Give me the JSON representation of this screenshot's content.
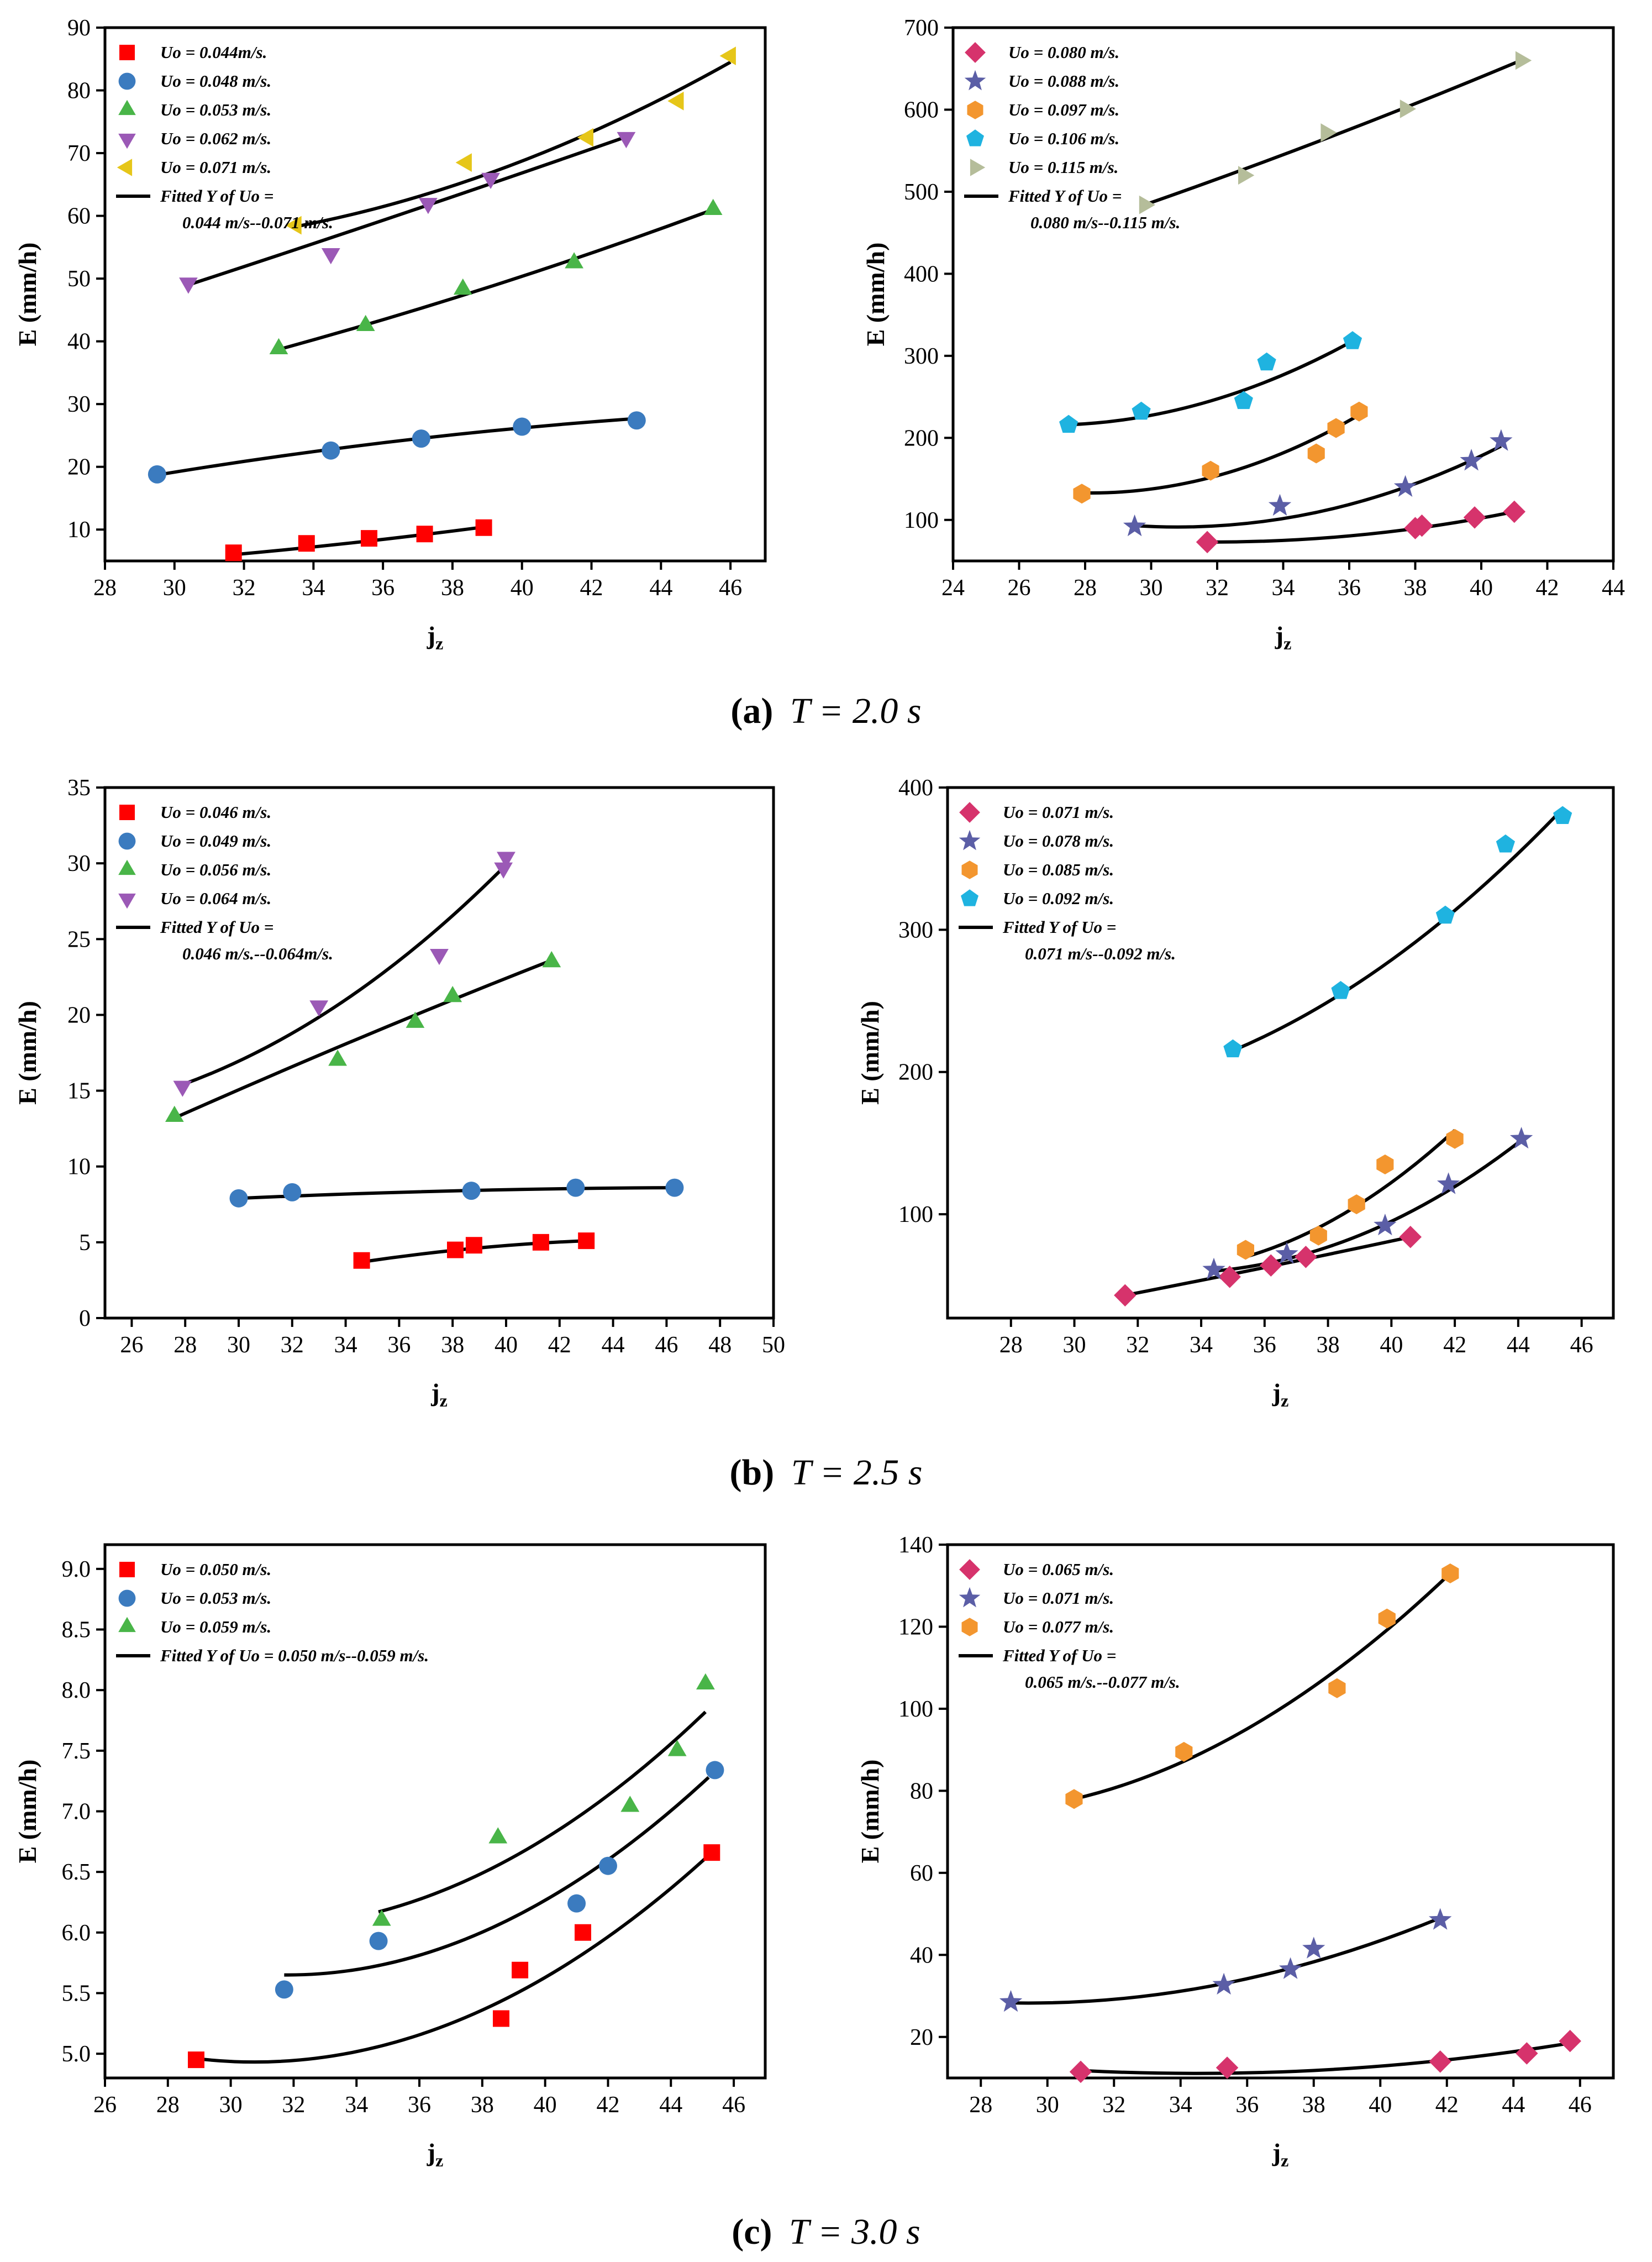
{
  "captions": [
    {
      "label": "(a)",
      "text": "T = 2.0 s"
    },
    {
      "label": "(b)",
      "text": "T = 2.5 s"
    },
    {
      "label": "(c)",
      "text": "T = 3.0 s"
    }
  ],
  "chart_data": [
    {
      "type": "scatter",
      "panel": "a-left",
      "xlabel": "jz",
      "ylabel": "E (mm/h)",
      "xlim": [
        28,
        47
      ],
      "ylim": [
        5,
        90
      ],
      "xticks": [
        28,
        30,
        32,
        34,
        36,
        38,
        40,
        42,
        44,
        46
      ],
      "yticks": [
        10,
        20,
        30,
        40,
        50,
        60,
        70,
        80,
        90
      ],
      "legend_position": "top-left",
      "fit_label": [
        "Fitted Y of Uo =",
        "0.044 m/s--0.071 m/s."
      ],
      "series": [
        {
          "name": "Uo = 0.044m/s.",
          "marker": "square",
          "color": "#ff0000",
          "x": [
            31.7,
            33.8,
            35.6,
            37.2,
            38.9
          ],
          "y": [
            6.3,
            7.8,
            8.6,
            9.3,
            10.3
          ],
          "fit": [
            [
              31.7,
              6.0
            ],
            [
              35.3,
              8.0
            ],
            [
              38.9,
              10.4
            ]
          ]
        },
        {
          "name": "Uo = 0.048 m/s.",
          "marker": "circle",
          "color": "#3b7bbf",
          "x": [
            29.5,
            34.5,
            37.1,
            40.0,
            43.3
          ],
          "y": [
            18.8,
            22.6,
            24.5,
            26.4,
            27.4
          ],
          "fit": [
            [
              29.5,
              18.7
            ],
            [
              36.4,
              24.1
            ],
            [
              43.3,
              27.7
            ]
          ]
        },
        {
          "name": "Uo = 0.053 m/s.",
          "marker": "triangle-up",
          "color": "#49b548",
          "x": [
            33.0,
            35.5,
            38.3,
            41.5,
            45.5
          ],
          "y": [
            38.8,
            42.5,
            48.3,
            52.5,
            61.0
          ],
          "fit": [
            [
              33.0,
              38.7
            ],
            [
              39.3,
              49.1
            ],
            [
              45.5,
              61.0
            ]
          ]
        },
        {
          "name": "Uo = 0.062 m/s.",
          "marker": "triangle-down",
          "color": "#9b59b6",
          "x": [
            30.4,
            34.5,
            37.3,
            39.1,
            43.0
          ],
          "y": [
            49.3,
            54.0,
            62.0,
            66.0,
            72.5
          ],
          "fit": [
            [
              30.4,
              49.0
            ],
            [
              36.7,
              60.6
            ],
            [
              43.0,
              72.6
            ]
          ]
        },
        {
          "name": "Uo = 0.071 m/s.",
          "marker": "triangle-left",
          "color": "#e6c619",
          "x": [
            33.5,
            38.4,
            41.9,
            44.5,
            46.0
          ],
          "y": [
            58.5,
            68.5,
            72.5,
            78.3,
            85.5
          ],
          "fit": [
            [
              33.5,
              58.3
            ],
            [
              39.7,
              68.1
            ],
            [
              46.0,
              84.5
            ]
          ]
        }
      ]
    },
    {
      "type": "scatter",
      "panel": "a-right",
      "xlabel": "jz",
      "ylabel": "E (mm/h)",
      "xlim": [
        24,
        44
      ],
      "ylim": [
        50,
        700
      ],
      "xticks": [
        24,
        26,
        28,
        30,
        32,
        34,
        36,
        38,
        40,
        42,
        44
      ],
      "yticks": [
        100,
        200,
        300,
        400,
        500,
        600,
        700
      ],
      "legend_position": "top-left",
      "fit_label": [
        "Fitted Y of Uo =",
        "0.080 m/s--0.115 m/s."
      ],
      "series": [
        {
          "name": "Uo = 0.080 m/s.",
          "marker": "diamond",
          "color": "#d6336c",
          "x": [
            31.7,
            38.0,
            38.2,
            39.8,
            41.0
          ],
          "y": [
            73,
            90,
            93,
            103,
            110
          ],
          "fit": [
            [
              31.7,
              73
            ],
            [
              36.4,
              82
            ],
            [
              41.0,
              110
            ]
          ]
        },
        {
          "name": "Uo = 0.088 m/s.",
          "marker": "star",
          "color": "#5b5ea6",
          "x": [
            29.5,
            33.9,
            37.7,
            39.7,
            40.6
          ],
          "y": [
            92,
            117,
            140,
            172,
            196
          ],
          "fit": [
            [
              29.5,
              93
            ],
            [
              35.1,
              110
            ],
            [
              40.6,
              190
            ]
          ]
        },
        {
          "name": "Uo = 0.097 m/s.",
          "marker": "hexagon",
          "color": "#f3962f",
          "x": [
            27.9,
            31.8,
            35.0,
            35.6,
            36.3
          ],
          "y": [
            132,
            160,
            181,
            212,
            232
          ],
          "fit": [
            [
              27.9,
              133
            ],
            [
              32.1,
              155
            ],
            [
              36.3,
              228
            ]
          ]
        },
        {
          "name": "Uo = 0.106 m/s.",
          "marker": "pentagon",
          "color": "#1fb3e0",
          "x": [
            27.5,
            29.7,
            32.8,
            33.5,
            36.1
          ],
          "y": [
            216,
            232,
            245,
            292,
            318
          ],
          "fit": [
            [
              27.5,
              216
            ],
            [
              31.8,
              245
            ],
            [
              36.1,
              318
            ]
          ]
        },
        {
          "name": "Uo = 0.115 m/s.",
          "marker": "triangle-right",
          "color": "#b5bd9a",
          "x": [
            29.8,
            32.8,
            35.3,
            37.7,
            41.2
          ],
          "y": [
            484,
            520,
            572,
            601,
            660
          ],
          "fit": [
            [
              29.8,
              484
            ],
            [
              35.5,
              568
            ],
            [
              41.2,
              660
            ]
          ]
        }
      ]
    },
    {
      "type": "scatter",
      "panel": "b-left",
      "xlabel": "jz",
      "ylabel": "E (mm/h)",
      "xlim": [
        25,
        50
      ],
      "ylim": [
        0,
        35
      ],
      "xticks": [
        26,
        28,
        30,
        32,
        34,
        36,
        38,
        40,
        42,
        44,
        46,
        48,
        50
      ],
      "yticks": [
        0,
        5,
        10,
        15,
        20,
        25,
        30,
        35
      ],
      "legend_position": "top-left",
      "fit_label": [
        "Fitted Y of Uo =",
        "0.046 m/s.--0.064m/s."
      ],
      "series": [
        {
          "name": "Uo = 0.046 m/s.",
          "marker": "square",
          "color": "#ff0000",
          "x": [
            34.6,
            38.1,
            38.8,
            41.3,
            43.0
          ],
          "y": [
            3.8,
            4.5,
            4.8,
            5.0,
            5.1
          ],
          "fit": [
            [
              34.6,
              3.7
            ],
            [
              38.8,
              4.6
            ],
            [
              43.0,
              5.1
            ]
          ]
        },
        {
          "name": "Uo = 0.049 m/s.",
          "marker": "circle",
          "color": "#3b7bbf",
          "x": [
            30.0,
            32.0,
            38.7,
            42.6,
            46.3
          ],
          "y": [
            7.9,
            8.3,
            8.4,
            8.6,
            8.6
          ],
          "fit": [
            [
              30.0,
              7.9
            ],
            [
              38.2,
              8.4
            ],
            [
              46.3,
              8.6
            ]
          ]
        },
        {
          "name": "Uo = 0.056 m/s.",
          "marker": "triangle-up",
          "color": "#49b548",
          "x": [
            27.6,
            33.7,
            36.6,
            38.0,
            41.7
          ],
          "y": [
            13.3,
            17.0,
            19.5,
            21.2,
            23.5
          ],
          "fit": [
            [
              27.6,
              13.2
            ],
            [
              34.7,
              18.6
            ],
            [
              41.7,
              23.6
            ]
          ]
        },
        {
          "name": "Uo = 0.064 m/s.",
          "marker": "triangle-down",
          "color": "#9b59b6",
          "x": [
            27.9,
            33.0,
            37.5,
            39.9,
            40.0
          ],
          "y": [
            15.3,
            20.6,
            24.0,
            29.7,
            30.4
          ],
          "fit": [
            [
              27.9,
              15.4
            ],
            [
              34.0,
              21.0
            ],
            [
              40.0,
              29.9
            ]
          ]
        }
      ]
    },
    {
      "type": "scatter",
      "panel": "b-right",
      "xlabel": "jz",
      "ylabel": "E (mm/h)",
      "xlim": [
        26,
        47
      ],
      "ylim": [
        27,
        400
      ],
      "xticks": [
        28,
        30,
        32,
        34,
        36,
        38,
        40,
        42,
        44,
        46
      ],
      "yticks": [
        100,
        200,
        300,
        400
      ],
      "legend_position": "top-left",
      "fit_label": [
        "Fitted Y of Uo =",
        "0.071 m/s--0.092 m/s."
      ],
      "series": [
        {
          "name": "Uo = 0.071 m/s.",
          "marker": "diamond",
          "color": "#d6336c",
          "x": [
            31.6,
            34.9,
            36.2,
            37.3,
            40.6
          ],
          "y": [
            43,
            56,
            64,
            70,
            84
          ],
          "fit": [
            [
              31.6,
              43
            ],
            [
              36.1,
              63
            ],
            [
              40.6,
              84
            ]
          ]
        },
        {
          "name": "Uo = 0.078 m/s.",
          "marker": "star",
          "color": "#5b5ea6",
          "x": [
            34.4,
            36.7,
            39.8,
            41.8,
            44.1
          ],
          "y": [
            61,
            72,
            92,
            121,
            153
          ],
          "fit": [
            [
              34.4,
              60
            ],
            [
              39.3,
              88
            ],
            [
              44.1,
              152
            ]
          ]
        },
        {
          "name": "Uo = 0.085 m/s.",
          "marker": "hexagon",
          "color": "#f3962f",
          "x": [
            35.4,
            37.7,
            38.9,
            39.8,
            42.0
          ],
          "y": [
            75,
            85,
            107,
            135,
            153
          ],
          "fit": [
            [
              35.4,
              70
            ],
            [
              38.7,
              103
            ],
            [
              42.0,
              159
            ]
          ]
        },
        {
          "name": "Uo = 0.092 m/s.",
          "marker": "pentagon",
          "color": "#1fb3e0",
          "x": [
            35.0,
            38.4,
            41.7,
            43.6,
            45.4
          ],
          "y": [
            216,
            257,
            310,
            360,
            380
          ],
          "fit": [
            [
              35.0,
              215
            ],
            [
              40.2,
              282
            ],
            [
              45.4,
              385
            ]
          ]
        }
      ]
    },
    {
      "type": "scatter",
      "panel": "c-left",
      "xlabel": "jz",
      "ylabel": "E (mm/h)",
      "xlim": [
        26,
        47
      ],
      "ylim": [
        4.8,
        9.2
      ],
      "xticks": [
        26,
        28,
        30,
        32,
        34,
        36,
        38,
        40,
        42,
        44,
        46
      ],
      "yticks": [
        5.0,
        5.5,
        6.0,
        6.5,
        7.0,
        7.5,
        8.0,
        8.5,
        9.0
      ],
      "legend_position": "top-left",
      "fit_label": [
        "Fitted Y of Uo = 0.050 m/s--0.059 m/s."
      ],
      "series": [
        {
          "name": "Uo = 0.050 m/s.",
          "marker": "square",
          "color": "#ff0000",
          "x": [
            28.9,
            38.6,
            39.2,
            41.2,
            45.3
          ],
          "y": [
            4.95,
            5.29,
            5.69,
            6.0,
            6.66
          ],
          "fit": [
            [
              28.9,
              4.96
            ],
            [
              37.1,
              5.26
            ],
            [
              45.3,
              6.66
            ]
          ]
        },
        {
          "name": "Uo = 0.053 m/s.",
          "marker": "circle",
          "color": "#3b7bbf",
          "x": [
            31.7,
            34.7,
            41.0,
            42.0,
            45.4
          ],
          "y": [
            5.53,
            5.93,
            6.24,
            6.55,
            7.34
          ],
          "fit": [
            [
              31.7,
              5.65
            ],
            [
              38.4,
              6.05
            ],
            [
              45.2,
              7.28
            ]
          ]
        },
        {
          "name": "Uo = 0.059 m/s.",
          "marker": "triangle-up",
          "color": "#49b548",
          "x": [
            34.8,
            38.5,
            42.7,
            44.2,
            45.1
          ],
          "y": [
            6.1,
            6.78,
            7.04,
            7.5,
            8.05
          ],
          "fit": [
            [
              34.7,
              6.17
            ],
            [
              39.9,
              6.76
            ],
            [
              45.1,
              7.82
            ]
          ]
        }
      ]
    },
    {
      "type": "scatter",
      "panel": "c-right",
      "xlabel": "jz",
      "ylabel": "E (mm/h)",
      "xlim": [
        27,
        47
      ],
      "ylim": [
        10,
        140
      ],
      "xticks": [
        28,
        30,
        32,
        34,
        36,
        38,
        40,
        42,
        44,
        46
      ],
      "yticks": [
        20,
        40,
        60,
        80,
        100,
        120,
        140
      ],
      "legend_position": "top-left",
      "fit_label": [
        "Fitted Y of Uo =",
        "0.065 m/s.--0.077 m/s."
      ],
      "series": [
        {
          "name": "Uo = 0.065 m/s.",
          "marker": "diamond",
          "color": "#d6336c",
          "x": [
            31.0,
            35.4,
            41.8,
            44.4,
            45.7
          ],
          "y": [
            11.5,
            12.5,
            14.0,
            16.0,
            19.0
          ],
          "fit": [
            [
              31.0,
              11.8
            ],
            [
              38.4,
              12.0
            ],
            [
              45.7,
              18.5
            ]
          ]
        },
        {
          "name": "Uo = 0.071 m/s.",
          "marker": "star",
          "color": "#5b5ea6",
          "x": [
            28.9,
            35.3,
            37.3,
            38.0,
            41.8
          ],
          "y": [
            28.5,
            32.7,
            36.5,
            41.5,
            48.5
          ],
          "fit": [
            [
              28.9,
              28.3
            ],
            [
              35.3,
              33.0
            ],
            [
              41.8,
              49.0
            ]
          ]
        },
        {
          "name": "Uo = 0.077 m/s.",
          "marker": "hexagon",
          "color": "#f3962f",
          "x": [
            30.8,
            34.1,
            38.7,
            40.2,
            42.1
          ],
          "y": [
            78,
            89.5,
            105,
            122,
            133
          ],
          "fit": [
            [
              30.8,
              78
            ],
            [
              36.4,
              97
            ],
            [
              42.1,
              133
            ]
          ]
        }
      ]
    }
  ]
}
